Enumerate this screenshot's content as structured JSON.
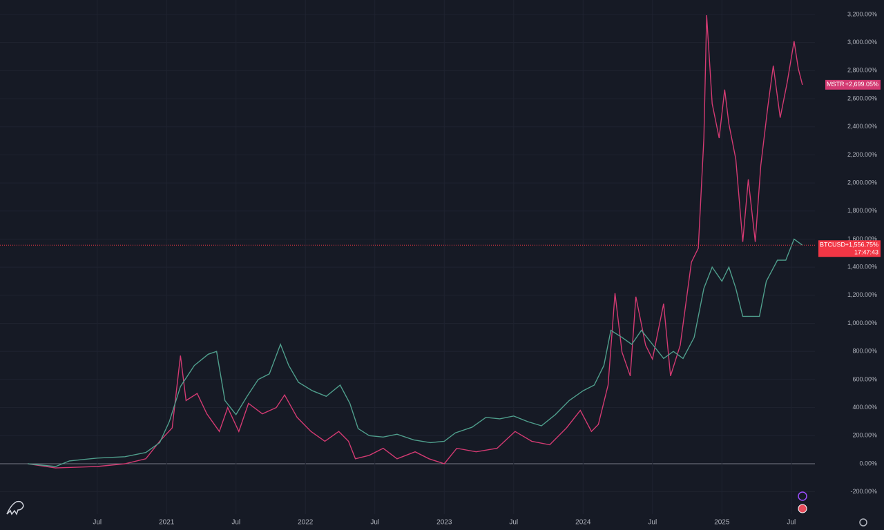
{
  "chart_data": {
    "type": "line",
    "grid": true,
    "xlim": [
      2019.8,
      2025.67
    ],
    "ylim": [
      -359,
      3303
    ],
    "xticks": [
      {
        "value": 2020.5,
        "label": "Jul"
      },
      {
        "value": 2021,
        "label": "2021"
      },
      {
        "value": 2021.5,
        "label": "Jul"
      },
      {
        "value": 2022,
        "label": "2022"
      },
      {
        "value": 2022.5,
        "label": "Jul"
      },
      {
        "value": 2023,
        "label": "2023"
      },
      {
        "value": 2023.5,
        "label": "Jul"
      },
      {
        "value": 2024,
        "label": "2024"
      },
      {
        "value": 2024.5,
        "label": "Jul"
      },
      {
        "value": 2025,
        "label": "2025"
      },
      {
        "value": 2025.5,
        "label": "Jul"
      }
    ],
    "yticks": [
      {
        "value": -200,
        "label": "-200.00%"
      },
      {
        "value": 0,
        "label": "0.00%"
      },
      {
        "value": 200,
        "label": "200.00%"
      },
      {
        "value": 400,
        "label": "400.00%"
      },
      {
        "value": 600,
        "label": "600.00%"
      },
      {
        "value": 800,
        "label": "800.00%"
      },
      {
        "value": 1000,
        "label": "1,000.00%"
      },
      {
        "value": 1200,
        "label": "1,200.00%"
      },
      {
        "value": 1400,
        "label": "1,400.00%"
      },
      {
        "value": 1600,
        "label": "1,600.00%"
      },
      {
        "value": 1800,
        "label": "1,800.00%"
      },
      {
        "value": 2000,
        "label": "2,000.00%"
      },
      {
        "value": 2200,
        "label": "2,200.00%"
      },
      {
        "value": 2400,
        "label": "2,400.00%"
      },
      {
        "value": 2600,
        "label": "2,600.00%"
      },
      {
        "value": 2800,
        "label": "2,800.00%"
      },
      {
        "value": 3000,
        "label": "3,000.00%"
      },
      {
        "value": 3200,
        "label": "3,200.00%"
      }
    ],
    "series": [
      {
        "name": "MSTR",
        "color": "#d33a72",
        "last_value": 2699.05,
        "last_label": "+2,699.05%",
        "x": [
          2020.0,
          2020.2,
          2020.5,
          2020.7,
          2020.85,
          2020.95,
          2021.04,
          2021.1,
          2021.14,
          2021.22,
          2021.29,
          2021.38,
          2021.44,
          2021.52,
          2021.59,
          2021.69,
          2021.79,
          2021.85,
          2021.94,
          2022.04,
          2022.14,
          2022.24,
          2022.31,
          2022.36,
          2022.46,
          2022.56,
          2022.66,
          2022.79,
          2022.89,
          2023.0,
          2023.09,
          2023.23,
          2023.38,
          2023.51,
          2023.63,
          2023.76,
          2023.88,
          2023.98,
          2024.06,
          2024.11,
          2024.18,
          2024.23,
          2024.28,
          2024.34,
          2024.38,
          2024.45,
          2024.5,
          2024.58,
          2024.63,
          2024.7,
          2024.78,
          2024.83,
          2024.87,
          2024.89,
          2024.93,
          2024.98,
          2025.02,
          2025.05,
          2025.1,
          2025.15,
          2025.19,
          2025.24,
          2025.28,
          2025.33,
          2025.37,
          2025.42,
          2025.47,
          2025.52,
          2025.55,
          2025.58
        ],
        "values": [
          0,
          -30,
          -20,
          0,
          35,
          160,
          255,
          770,
          450,
          500,
          355,
          230,
          400,
          230,
          430,
          355,
          400,
          490,
          330,
          230,
          160,
          230,
          160,
          35,
          60,
          110,
          35,
          85,
          35,
          0,
          110,
          85,
          110,
          230,
          160,
          135,
          255,
          380,
          230,
          280,
          560,
          1215,
          795,
          625,
          1190,
          845,
          745,
          1140,
          625,
          845,
          1435,
          1535,
          2320,
          3195,
          2565,
          2320,
          2665,
          2420,
          2170,
          1580,
          2025,
          1580,
          2125,
          2540,
          2835,
          2465,
          2715,
          3010,
          2815,
          2699.05
        ]
      },
      {
        "name": "BTCUSD",
        "color": "#4f9e8c",
        "label_color": "#f23645",
        "last_value": 1556.75,
        "last_label": "+1,556.75%",
        "countdown": "17:47:43",
        "x": [
          2020.0,
          2020.2,
          2020.3,
          2020.5,
          2020.7,
          2020.85,
          2020.95,
          2021.02,
          2021.1,
          2021.2,
          2021.3,
          2021.36,
          2021.42,
          2021.5,
          2021.58,
          2021.66,
          2021.74,
          2021.82,
          2021.88,
          2021.95,
          2022.05,
          2022.15,
          2022.25,
          2022.32,
          2022.38,
          2022.46,
          2022.56,
          2022.66,
          2022.78,
          2022.9,
          2023.0,
          2023.08,
          2023.2,
          2023.3,
          2023.4,
          2023.5,
          2023.6,
          2023.7,
          2023.8,
          2023.9,
          2024.0,
          2024.08,
          2024.15,
          2024.2,
          2024.28,
          2024.35,
          2024.42,
          2024.5,
          2024.58,
          2024.65,
          2024.72,
          2024.8,
          2024.87,
          2024.93,
          2025.0,
          2025.05,
          2025.1,
          2025.15,
          2025.22,
          2025.27,
          2025.32,
          2025.4,
          2025.46,
          2025.52,
          2025.58
        ],
        "values": [
          0,
          -20,
          20,
          40,
          50,
          80,
          150,
          300,
          550,
          700,
          780,
          800,
          450,
          350,
          480,
          600,
          640,
          850,
          700,
          580,
          520,
          480,
          560,
          430,
          250,
          200,
          190,
          210,
          170,
          150,
          160,
          220,
          260,
          330,
          320,
          340,
          300,
          270,
          350,
          450,
          520,
          560,
          700,
          950,
          900,
          850,
          950,
          850,
          750,
          800,
          750,
          900,
          1250,
          1400,
          1300,
          1400,
          1250,
          1050,
          1050,
          1050,
          1300,
          1450,
          1450,
          1600,
          1556.75
        ]
      }
    ]
  }
}
